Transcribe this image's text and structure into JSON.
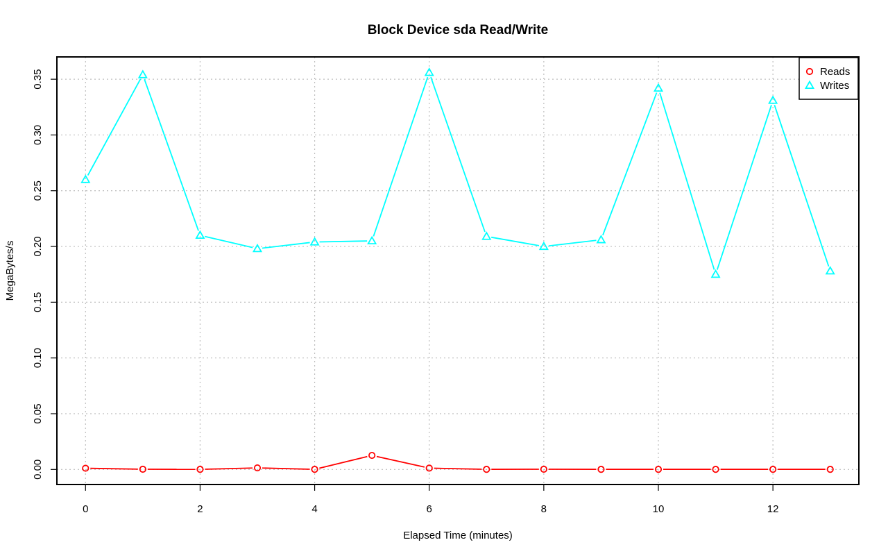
{
  "chart_data": {
    "type": "line",
    "title": "Block Device sda Read/Write",
    "xlabel": "Elapsed Time (minutes)",
    "ylabel": "MegaBytes/s",
    "x": [
      0,
      1,
      2,
      3,
      4,
      5,
      6,
      7,
      8,
      9,
      10,
      11,
      12,
      13
    ],
    "xlim": [
      -0.5,
      13.5
    ],
    "ylim": [
      -0.0135,
      0.37
    ],
    "x_ticks": [
      "0",
      "2",
      "4",
      "6",
      "8",
      "10",
      "12"
    ],
    "x_tick_values": [
      0,
      2,
      4,
      6,
      8,
      10,
      12
    ],
    "y_ticks": [
      "0.00",
      "0.05",
      "0.10",
      "0.15",
      "0.20",
      "0.25",
      "0.30",
      "0.35"
    ],
    "y_tick_values": [
      0,
      0.05,
      0.1,
      0.15,
      0.2,
      0.25,
      0.3,
      0.35
    ],
    "grid": true,
    "legend_position": "top-right",
    "series": [
      {
        "name": "Reads",
        "color": "#ff0000",
        "marker": "circle",
        "values": [
          0.0011,
          0.0002,
          0.0001,
          0.0014,
          0.0001,
          0.0126,
          0.0012,
          0.0001,
          0.0002,
          0.0001,
          0.0001,
          0.0001,
          0.0001,
          0.0001
        ]
      },
      {
        "name": "Writes",
        "color": "#00ffff",
        "marker": "triangle",
        "values": [
          0.26,
          0.354,
          0.21,
          0.198,
          0.204,
          0.205,
          0.356,
          0.209,
          0.2,
          0.206,
          0.342,
          0.175,
          0.331,
          0.178
        ]
      }
    ]
  }
}
